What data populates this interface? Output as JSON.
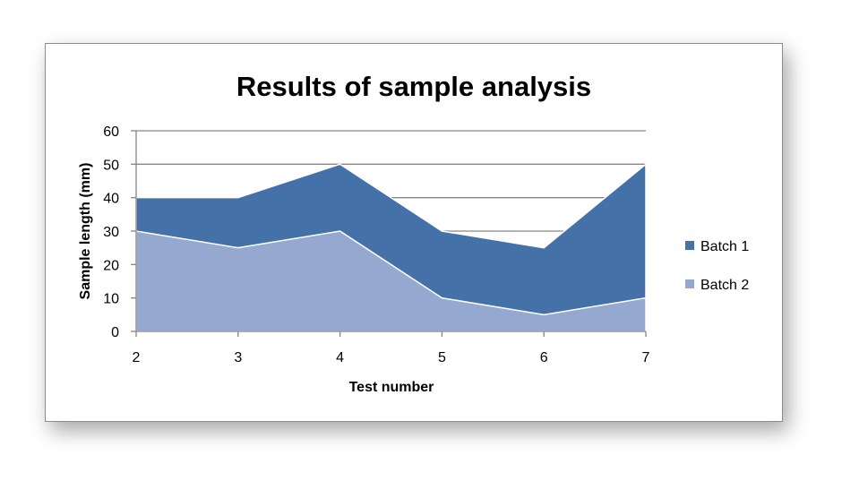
{
  "chart_data": {
    "type": "area",
    "title": "Results of sample analysis",
    "xlabel": "Test number",
    "ylabel": "Sample length (mm)",
    "categories": [
      "2",
      "3",
      "4",
      "5",
      "6",
      "7"
    ],
    "ylim": [
      0,
      60
    ],
    "yticks": [
      "0",
      "10",
      "20",
      "30",
      "40",
      "50",
      "60"
    ],
    "grid": true,
    "legend_position": "right",
    "series": [
      {
        "name": "Batch 1",
        "values": [
          40,
          40,
          50,
          30,
          25,
          50
        ],
        "color": "#4472a8"
      },
      {
        "name": "Batch 2",
        "values": [
          30,
          25,
          30,
          10,
          5,
          10
        ],
        "color": "#95a9d0"
      }
    ]
  }
}
